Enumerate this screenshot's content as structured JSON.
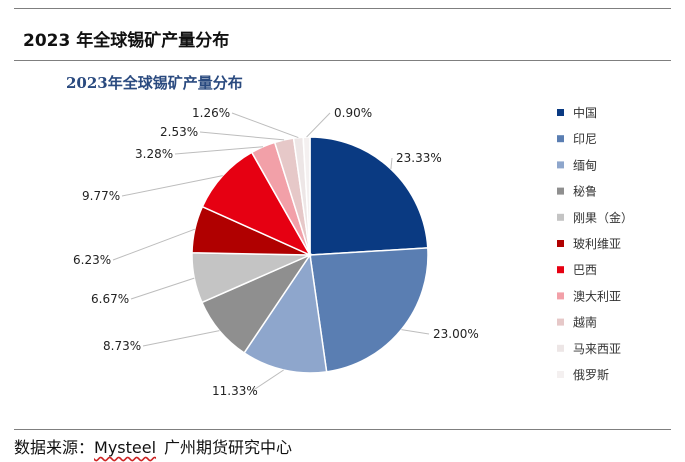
{
  "figure": {
    "title": "2023 年全球锡矿产量分布",
    "source_label": "数据来源：",
    "source_brand": "Mysteel",
    "source_org": "广州期货研究中心"
  },
  "chart_data": {
    "type": "pie",
    "title": "2023年全球锡矿产量分布",
    "legend_position": "right",
    "slices": [
      {
        "name": "中国",
        "value": 23.33,
        "label": "23.33%",
        "color": "#0a3a82"
      },
      {
        "name": "印尼",
        "value": 23.0,
        "label": "23.00%",
        "color": "#5a7eb2"
      },
      {
        "name": "缅甸",
        "value": 11.33,
        "label": "11.33%",
        "color": "#8ea6cc"
      },
      {
        "name": "秘鲁",
        "value": 8.73,
        "label": "8.73%",
        "color": "#8f8f8f"
      },
      {
        "name": "刚果（金）",
        "value": 6.67,
        "label": "6.67%",
        "color": "#c4c4c4"
      },
      {
        "name": "玻利维亚",
        "value": 6.23,
        "label": "6.23%",
        "color": "#b00000"
      },
      {
        "name": "巴西",
        "value": 9.77,
        "label": "9.77%",
        "color": "#e60012"
      },
      {
        "name": "澳大利亚",
        "value": 3.28,
        "label": "3.28%",
        "color": "#f2a0a8"
      },
      {
        "name": "越南",
        "value": 2.53,
        "label": "2.53%",
        "color": "#e6c8c8"
      },
      {
        "name": "马来西亚",
        "value": 1.26,
        "label": "1.26%",
        "color": "#ede6e6"
      },
      {
        "name": "俄罗斯",
        "value": 0.9,
        "label": "0.90%",
        "color": "#f4f0f0"
      }
    ]
  }
}
